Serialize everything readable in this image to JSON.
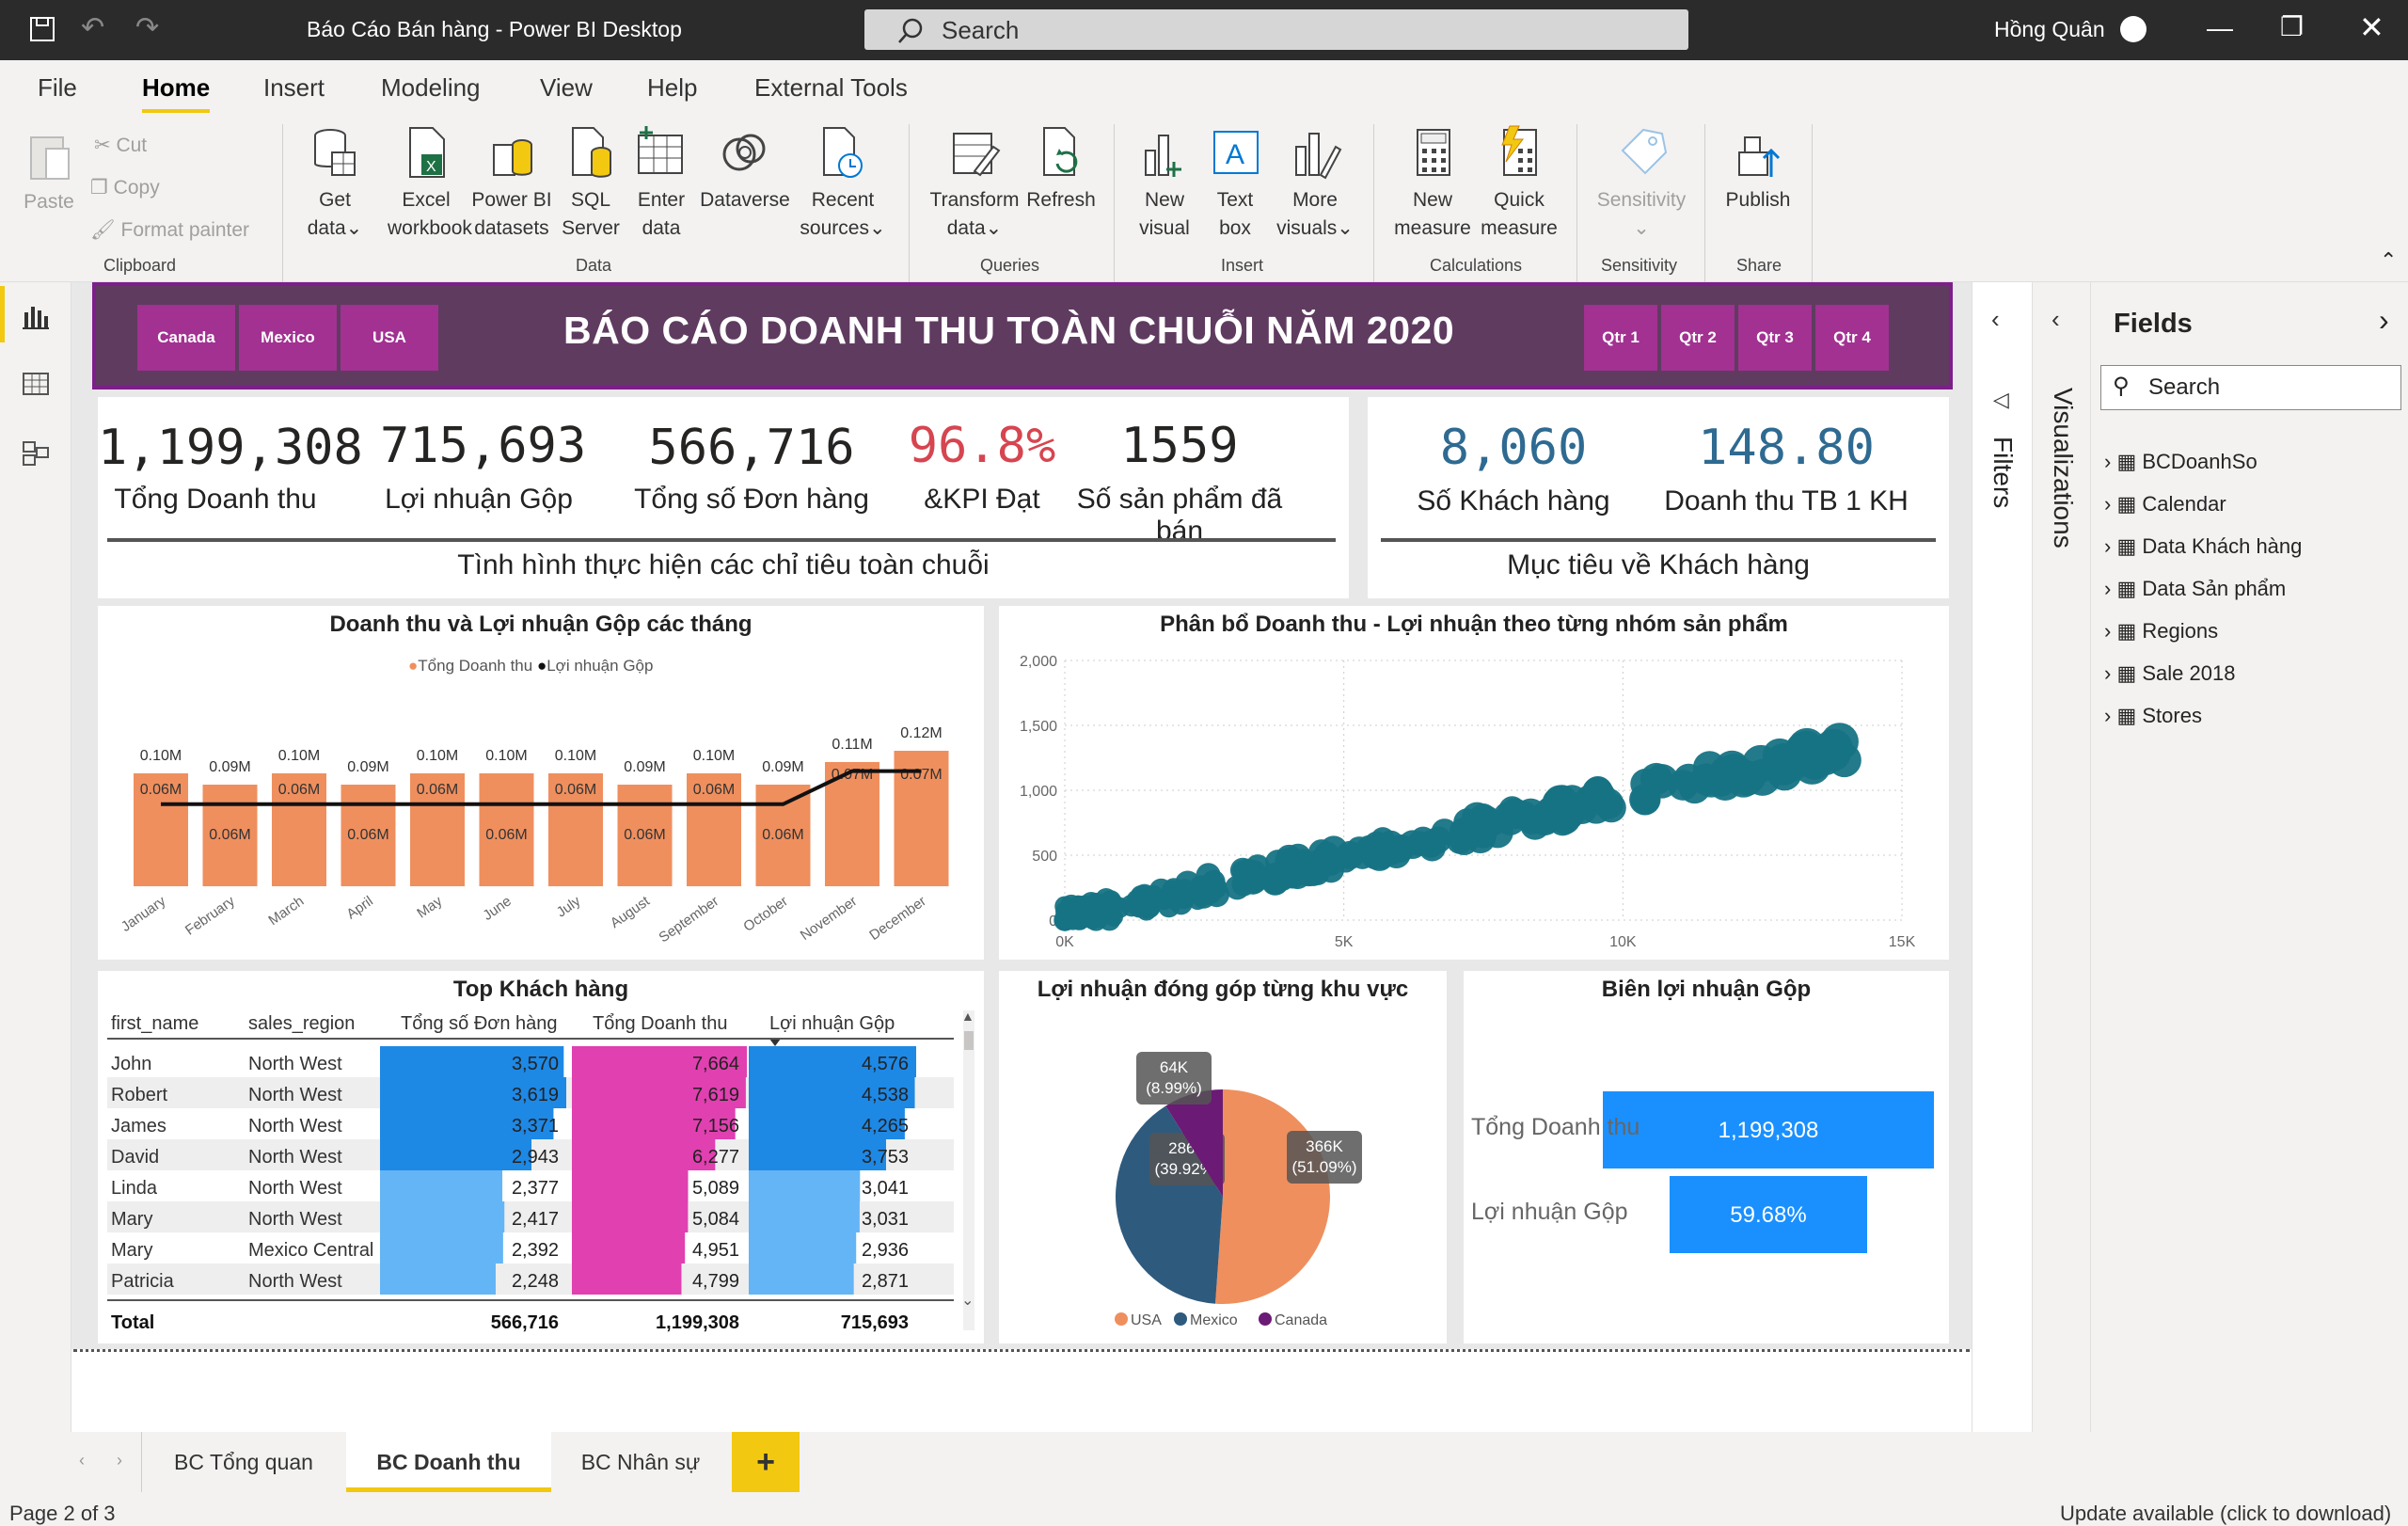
{
  "window": {
    "title": "Báo Cáo Bán hàng - Power BI Desktop",
    "search": "Search",
    "user": "Hồng Quân"
  },
  "menu": [
    "File",
    "Home",
    "Insert",
    "Modeling",
    "View",
    "Help",
    "External Tools"
  ],
  "ribbon": {
    "clipboard": {
      "paste": "Paste",
      "cut": "Cut",
      "copy": "Copy",
      "format_painter": "Format painter",
      "label": "Clipboard"
    },
    "data": {
      "get_data": [
        "Get",
        "data"
      ],
      "excel": [
        "Excel",
        "workbook"
      ],
      "pbi": [
        "Power BI",
        "datasets"
      ],
      "sql": [
        "SQL",
        "Server"
      ],
      "enter": [
        "Enter",
        "data"
      ],
      "dataverse": "Dataverse",
      "recent": [
        "Recent",
        "sources"
      ],
      "label": "Data"
    },
    "queries": {
      "transform": [
        "Transform",
        "data"
      ],
      "refresh": "Refresh",
      "label": "Queries"
    },
    "insert": {
      "new_visual": [
        "New",
        "visual"
      ],
      "text_box": [
        "Text",
        "box"
      ],
      "more": [
        "More",
        "visuals"
      ],
      "label": "Insert"
    },
    "calc": {
      "new_measure": [
        "New",
        "measure"
      ],
      "quick": [
        "Quick",
        "measure"
      ],
      "label": "Calculations"
    },
    "sensitivity": {
      "btn": "Sensitivity",
      "label": "Sensitivity"
    },
    "share": {
      "publish": "Publish",
      "label": "Share"
    }
  },
  "header": {
    "slicers": [
      "Canada",
      "Mexico",
      "USA"
    ],
    "title": "BÁO CÁO DOANH THU TOÀN CHUỖI NĂM 2020",
    "quarters": [
      "Qtr 1",
      "Qtr 2",
      "Qtr 3",
      "Qtr 4"
    ]
  },
  "kpis": [
    {
      "value": "1,199,308",
      "label": "Tổng Doanh thu"
    },
    {
      "value": "715,693",
      "label": "Lợi nhuận Gộp"
    },
    {
      "value": "566,716",
      "label": "Tổng số Đơn hàng"
    },
    {
      "value": "96.8%",
      "label": "&KPI Đạt"
    },
    {
      "value": "1559",
      "label": "Số sản phẩm đã bán"
    }
  ],
  "kpi_caption": "Tình hình thực hiện các chỉ tiêu toàn chuỗi",
  "cust_kpis": [
    {
      "value": "8,060",
      "label": "Số Khách hàng"
    },
    {
      "value": "148.80",
      "label": "Doanh thu TB 1 KH"
    }
  ],
  "cust_caption": "Mục tiêu về Khách hàng",
  "colors": {
    "kpi_red": "#d64550",
    "kpi_blue": "#2e6a91",
    "bar": "#ef8f5e",
    "scatter": "#167384",
    "slicer": "#a23192",
    "header": "#5f3b60"
  },
  "chart_data": [
    {
      "type": "bar",
      "title": "Doanh thu và Lợi nhuận Gộp các tháng",
      "legend": [
        "Tổng Doanh thu",
        "Lợi nhuận Gộp"
      ],
      "categories": [
        "January",
        "February",
        "March",
        "April",
        "May",
        "June",
        "July",
        "August",
        "September",
        "October",
        "November",
        "December"
      ],
      "series": [
        {
          "name": "Tổng Doanh thu",
          "values": [
            0.1,
            0.09,
            0.1,
            0.09,
            0.1,
            0.1,
            0.1,
            0.09,
            0.1,
            0.09,
            0.11,
            0.12
          ],
          "labels": [
            "0.10M",
            "0.09M",
            "0.10M",
            "0.09M",
            "0.10M",
            "0.10M",
            "0.10M",
            "0.09M",
            "0.10M",
            "0.09M",
            "0.11M",
            "0.12M"
          ]
        },
        {
          "name": "Lợi nhuận Gộp",
          "values": [
            0.06,
            0.06,
            0.06,
            0.06,
            0.06,
            0.06,
            0.06,
            0.06,
            0.06,
            0.06,
            0.07,
            0.07
          ],
          "labels": [
            "0.06M",
            "0.06M",
            "0.06M",
            "0.06M",
            "0.06M",
            "0.06M",
            "0.06M",
            "0.06M",
            "0.06M",
            "0.06M",
            "0.07M",
            "0.07M"
          ]
        }
      ]
    },
    {
      "type": "scatter",
      "title": "Phân bổ Doanh thu - Lợi nhuận theo từng nhóm sản phẩm",
      "xticks": [
        "0K",
        "5K",
        "10K",
        "15K"
      ],
      "yticks": [
        "0",
        "500",
        "1,000",
        "1,500",
        "2,000"
      ],
      "xlim": [
        0,
        15000
      ],
      "ylim": [
        0,
        2000
      ]
    },
    {
      "type": "pie",
      "title": "Lợi nhuận đóng góp từng khu vực",
      "slices": [
        {
          "name": "USA",
          "value": 366,
          "label": "366K",
          "pct": "(51.09%)"
        },
        {
          "name": "Mexico",
          "value": 286,
          "label": "286K",
          "pct": "(39.92%)"
        },
        {
          "name": "Canada",
          "value": 64,
          "label": "64K",
          "pct": "(8.99%)"
        }
      ],
      "legend": [
        "USA",
        "Mexico",
        "Canada"
      ]
    },
    {
      "type": "bar",
      "title": "Biên lợi nhuận Gộp",
      "categories": [
        "Tổng Doanh thu",
        "Lợi nhuận Gộp"
      ],
      "values": [
        1199308,
        715693
      ],
      "labels": [
        "1,199,308",
        "59.68%"
      ]
    }
  ],
  "table": {
    "title": "Top Khách hàng",
    "columns": [
      "first_name",
      "sales_region",
      "Tổng số Đơn hàng",
      "Tổng Doanh thu",
      "Lợi nhuận Gộp"
    ],
    "rows": [
      [
        "John",
        "North West",
        "3,570",
        "7,664",
        "4,576"
      ],
      [
        "Robert",
        "North West",
        "3,619",
        "7,619",
        "4,538"
      ],
      [
        "James",
        "North West",
        "3,371",
        "7,156",
        "4,265"
      ],
      [
        "David",
        "North West",
        "2,943",
        "6,277",
        "3,753"
      ],
      [
        "Linda",
        "North West",
        "2,377",
        "5,089",
        "3,041"
      ],
      [
        "Mary",
        "North West",
        "2,417",
        "5,084",
        "3,031"
      ],
      [
        "Mary",
        "Mexico Central",
        "2,392",
        "4,951",
        "2,936"
      ],
      [
        "Patricia",
        "North West",
        "2,248",
        "4,799",
        "2,871"
      ]
    ],
    "total": [
      "Total",
      "",
      "566,716",
      "1,199,308",
      "715,693"
    ]
  },
  "side": {
    "filters": "Filters",
    "visualizations": "Visualizations",
    "fields_title": "Fields",
    "search": "Search",
    "fields": [
      "BCDoanhSo",
      "Calendar",
      "Data Khách hàng",
      "Data Sản phẩm",
      "Regions",
      "Sale 2018",
      "Stores"
    ]
  },
  "tabs": [
    "BC Tổng quan",
    "BC Doanh thu",
    "BC Nhân sự"
  ],
  "status": {
    "page": "Page 2 of 3",
    "update": "Update available (click to download)"
  }
}
